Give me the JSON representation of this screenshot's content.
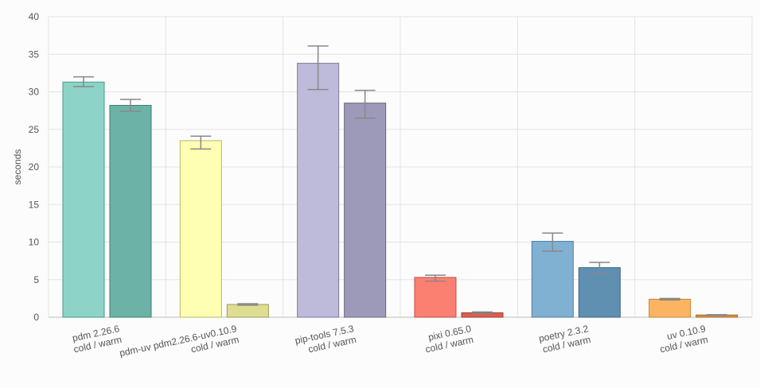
{
  "chart_data": {
    "type": "bar",
    "ylabel": "seconds",
    "ylim": [
      0,
      40
    ],
    "yticks": [
      0,
      5,
      10,
      15,
      20,
      25,
      30,
      35,
      40
    ],
    "grid": true,
    "categories": [
      {
        "line1": "pdm 2.26.6",
        "line2": "cold / warm"
      },
      {
        "line1": "pdm-uv pdm2.26.6-uv0.10.9",
        "line2": "cold / warm"
      },
      {
        "line1": "pip-tools 7.5.3",
        "line2": "cold / warm"
      },
      {
        "line1": "pixi 0.65.0",
        "line2": "cold / warm"
      },
      {
        "line1": "poetry 2.3.2",
        "line2": "cold / warm"
      },
      {
        "line1": "uv 0.10.9",
        "line2": "cold / warm"
      }
    ],
    "bars": [
      {
        "cold": {
          "value": 31.3,
          "err_low": 30.7,
          "err_high": 32.0,
          "color": "#8dd3c7",
          "stroke": "#4a9a8c"
        },
        "warm": {
          "value": 28.2,
          "err_low": 27.4,
          "err_high": 29.0,
          "color": "#6cb2a6",
          "stroke": "#3f7d72"
        }
      },
      {
        "cold": {
          "value": 23.5,
          "err_low": 22.4,
          "err_high": 24.1,
          "color": "#ffffb3",
          "stroke": "#b8b86a"
        },
        "warm": {
          "value": 1.7,
          "err_low": 1.6,
          "err_high": 1.8,
          "color": "#dede92",
          "stroke": "#9d9d57"
        }
      },
      {
        "cold": {
          "value": 33.8,
          "err_low": 30.3,
          "err_high": 36.1,
          "color": "#bebada",
          "stroke": "#7d79a0"
        },
        "warm": {
          "value": 28.5,
          "err_low": 26.5,
          "err_high": 30.2,
          "color": "#9d99b9",
          "stroke": "#67637f"
        }
      },
      {
        "cold": {
          "value": 5.3,
          "err_low": 4.8,
          "err_high": 5.6,
          "color": "#fb8072",
          "stroke": "#c24f42"
        },
        "warm": {
          "value": 0.6,
          "err_low": 0.5,
          "err_high": 0.7,
          "color": "#da5f51",
          "stroke": "#a33d31"
        }
      },
      {
        "cold": {
          "value": 10.1,
          "err_low": 8.8,
          "err_high": 11.2,
          "color": "#80b1d3",
          "stroke": "#4f7e9f"
        },
        "warm": {
          "value": 6.6,
          "err_low": 5.8,
          "err_high": 7.3,
          "color": "#5f90b2",
          "stroke": "#3d6582"
        }
      },
      {
        "cold": {
          "value": 2.4,
          "err_low": 2.3,
          "err_high": 2.5,
          "color": "#fdb462",
          "stroke": "#c0843a"
        },
        "warm": {
          "value": 0.3,
          "err_low": 0.25,
          "err_high": 0.35,
          "color": "#dc9341",
          "stroke": "#a36a2a"
        }
      }
    ],
    "error_color": "#888888",
    "grid_color": "#e3e3e3",
    "axis_color": "#bbbbbb"
  }
}
